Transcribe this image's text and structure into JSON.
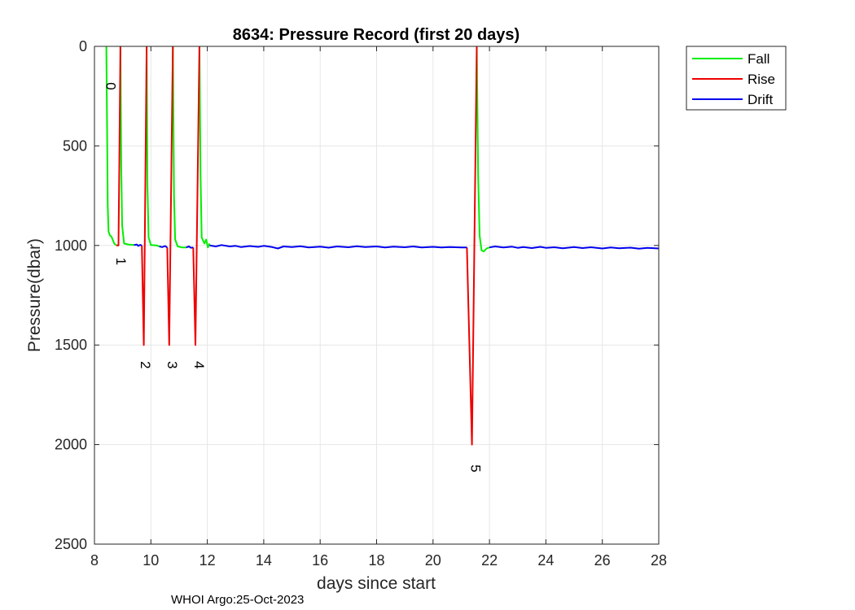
{
  "chart_data": {
    "type": "line",
    "title": "8634: Pressure Record (first 20 days)",
    "xlabel": "days since start",
    "ylabel": "Pressure(dbar)",
    "xlim": [
      8,
      28
    ],
    "ylim": [
      0,
      2500
    ],
    "y_reversed": true,
    "grid": true,
    "xticks": [
      8,
      10,
      12,
      14,
      16,
      18,
      20,
      22,
      24,
      26,
      28
    ],
    "yticks": [
      0,
      500,
      1000,
      1500,
      2000,
      2500
    ],
    "legend_position": "outside-top-right",
    "footer": "WHOI Argo:25-Oct-2023",
    "series": [
      {
        "name": "Fall",
        "color": "#00ee00",
        "segments": [
          [
            [
              8.42,
              0
            ],
            [
              8.45,
              450
            ],
            [
              8.47,
              800
            ],
            [
              8.5,
              930
            ],
            [
              8.55,
              950
            ],
            [
              8.6,
              955
            ],
            [
              8.7,
              990
            ],
            [
              8.78,
              1000
            ]
          ],
          [
            [
              8.92,
              0
            ],
            [
              8.95,
              600
            ],
            [
              8.98,
              900
            ],
            [
              9.05,
              990
            ],
            [
              9.2,
              995
            ],
            [
              9.4,
              998
            ]
          ],
          [
            [
              9.85,
              0
            ],
            [
              9.88,
              700
            ],
            [
              9.92,
              960
            ],
            [
              10.0,
              998
            ],
            [
              10.2,
              1000
            ],
            [
              10.3,
              1005
            ]
          ],
          [
            [
              10.78,
              0
            ],
            [
              10.82,
              750
            ],
            [
              10.86,
              970
            ],
            [
              10.95,
              1005
            ],
            [
              11.1,
              1010
            ],
            [
              11.25,
              1010
            ]
          ],
          [
            [
              11.72,
              0
            ],
            [
              11.76,
              650
            ],
            [
              11.8,
              960
            ],
            [
              11.85,
              975
            ],
            [
              11.9,
              990
            ],
            [
              11.96,
              970
            ],
            [
              12.02,
              1010
            ],
            [
              12.08,
              990
            ]
          ],
          [
            [
              21.55,
              0
            ],
            [
              21.6,
              650
            ],
            [
              21.65,
              950
            ],
            [
              21.72,
              1025
            ],
            [
              21.8,
              1030
            ],
            [
              21.9,
              1015
            ],
            [
              22.0,
              1010
            ]
          ]
        ]
      },
      {
        "name": "Rise",
        "color": "#ee0000",
        "segments": [
          [
            [
              8.78,
              1000
            ],
            [
              8.85,
              1000
            ],
            [
              8.88,
              600
            ],
            [
              8.92,
              0
            ]
          ],
          [
            [
              9.68,
              1000
            ],
            [
              9.75,
              1500
            ],
            [
              9.85,
              0
            ]
          ],
          [
            [
              10.58,
              1010
            ],
            [
              10.65,
              1500
            ],
            [
              10.78,
              0
            ]
          ],
          [
            [
              11.5,
              1010
            ],
            [
              11.58,
              1500
            ],
            [
              11.72,
              0
            ]
          ],
          [
            [
              21.2,
              1010
            ],
            [
              21.38,
              2000
            ],
            [
              21.55,
              0
            ]
          ]
        ]
      },
      {
        "name": "Drift",
        "color": "#0000ee",
        "segments": [
          [
            [
              9.4,
              998
            ],
            [
              9.5,
              995
            ],
            [
              9.55,
              1002
            ],
            [
              9.62,
              997
            ],
            [
              9.68,
              1000
            ]
          ],
          [
            [
              10.3,
              1005
            ],
            [
              10.4,
              1008
            ],
            [
              10.5,
              1003
            ],
            [
              10.58,
              1010
            ]
          ],
          [
            [
              11.25,
              1010
            ],
            [
              11.35,
              1005
            ],
            [
              11.42,
              1012
            ],
            [
              11.5,
              1010
            ]
          ],
          [
            [
              12.08,
              1000
            ],
            [
              12.3,
              1005
            ],
            [
              12.5,
              998
            ],
            [
              12.8,
              1005
            ],
            [
              13.0,
              1002
            ],
            [
              13.2,
              1008
            ],
            [
              13.5,
              1003
            ],
            [
              13.8,
              1007
            ],
            [
              14.0,
              1002
            ],
            [
              14.3,
              1008
            ],
            [
              14.5,
              1015
            ],
            [
              14.7,
              1005
            ],
            [
              15.0,
              1008
            ],
            [
              15.3,
              1004
            ],
            [
              15.6,
              1010
            ],
            [
              16.0,
              1006
            ],
            [
              16.3,
              1011
            ],
            [
              16.6,
              1005
            ],
            [
              17.0,
              1009
            ],
            [
              17.3,
              1004
            ],
            [
              17.6,
              1008
            ],
            [
              18.0,
              1005
            ],
            [
              18.3,
              1010
            ],
            [
              18.6,
              1006
            ],
            [
              19.0,
              1009
            ],
            [
              19.3,
              1005
            ],
            [
              19.6,
              1010
            ],
            [
              20.0,
              1007
            ],
            [
              20.3,
              1010
            ],
            [
              20.6,
              1008
            ],
            [
              21.0,
              1010
            ],
            [
              21.2,
              1010
            ]
          ],
          [
            [
              22.0,
              1010
            ],
            [
              22.2,
              1005
            ],
            [
              22.5,
              1010
            ],
            [
              22.8,
              1006
            ],
            [
              23.0,
              1012
            ],
            [
              23.2,
              1008
            ],
            [
              23.5,
              1013
            ],
            [
              23.8,
              1007
            ],
            [
              24.0,
              1012
            ],
            [
              24.3,
              1009
            ],
            [
              24.6,
              1014
            ],
            [
              25.0,
              1008
            ],
            [
              25.3,
              1013
            ],
            [
              25.6,
              1009
            ],
            [
              26.0,
              1015
            ],
            [
              26.3,
              1010
            ],
            [
              26.6,
              1014
            ],
            [
              27.0,
              1011
            ],
            [
              27.3,
              1016
            ],
            [
              27.6,
              1012
            ],
            [
              28.0,
              1015
            ]
          ]
        ]
      }
    ],
    "annotations": [
      {
        "text": "0",
        "x": 8.42,
        "y": 200
      },
      {
        "text": "1",
        "x": 8.78,
        "y": 1080
      },
      {
        "text": "2",
        "x": 9.65,
        "y": 1600
      },
      {
        "text": "3",
        "x": 10.6,
        "y": 1600
      },
      {
        "text": "4",
        "x": 11.55,
        "y": 1600
      },
      {
        "text": "5",
        "x": 21.35,
        "y": 2120
      }
    ]
  }
}
